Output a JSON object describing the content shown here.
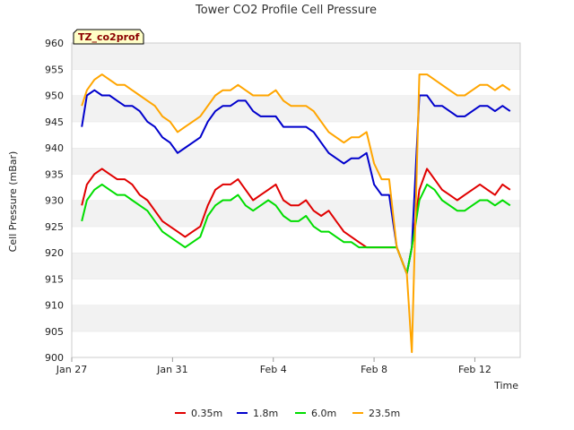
{
  "chart_data": {
    "type": "line",
    "title": "Tower CO2 Profile Cell Pressure",
    "badge": "TZ_co2prof",
    "xlabel": "Time",
    "ylabel": "Cell Pressure (mBar)",
    "xlim": [
      0,
      17.8
    ],
    "ylim": [
      900,
      960
    ],
    "x_ticks": [
      {
        "x": 0,
        "label": "Jan 27"
      },
      {
        "x": 4,
        "label": "Jan 31"
      },
      {
        "x": 8,
        "label": "Feb 4"
      },
      {
        "x": 12,
        "label": "Feb 8"
      },
      {
        "x": 16,
        "label": "Feb 12"
      }
    ],
    "y_ticks": [
      900,
      905,
      910,
      915,
      920,
      925,
      930,
      935,
      940,
      945,
      950,
      955,
      960
    ],
    "grid": "horizontal-bands",
    "legend_position": "bottom",
    "series": [
      {
        "name": "0.35m",
        "color": "#e00000",
        "x": [
          0.4,
          0.6,
          0.9,
          1.2,
          1.5,
          1.8,
          2.1,
          2.4,
          2.7,
          3.0,
          3.3,
          3.6,
          3.9,
          4.2,
          4.5,
          4.8,
          5.1,
          5.4,
          5.7,
          6.0,
          6.3,
          6.6,
          6.9,
          7.2,
          7.5,
          7.8,
          8.1,
          8.4,
          8.7,
          9.0,
          9.3,
          9.6,
          9.9,
          10.2,
          10.5,
          10.8,
          11.1,
          11.4,
          11.7,
          12.0,
          12.3,
          12.6,
          12.9,
          13.3,
          13.5,
          13.8,
          14.1,
          14.4,
          14.7,
          15.0,
          15.3,
          15.6,
          15.9,
          16.2,
          16.5,
          16.8,
          17.1,
          17.4
        ],
        "y": [
          929,
          933,
          935,
          936,
          935,
          934,
          934,
          933,
          931,
          930,
          928,
          926,
          925,
          924,
          923,
          924,
          925,
          929,
          932,
          933,
          933,
          934,
          932,
          930,
          931,
          932,
          933,
          930,
          929,
          929,
          930,
          928,
          927,
          928,
          926,
          924,
          923,
          922,
          921,
          921,
          921,
          921,
          921,
          916,
          921,
          932,
          936,
          934,
          932,
          931,
          930,
          931,
          932,
          933,
          932,
          931,
          933,
          932
        ]
      },
      {
        "name": "1.8m",
        "color": "#0000cc",
        "x": [
          0.4,
          0.6,
          0.9,
          1.2,
          1.5,
          1.8,
          2.1,
          2.4,
          2.7,
          3.0,
          3.3,
          3.6,
          3.9,
          4.2,
          4.5,
          4.8,
          5.1,
          5.4,
          5.7,
          6.0,
          6.3,
          6.6,
          6.9,
          7.2,
          7.5,
          7.8,
          8.1,
          8.4,
          8.7,
          9.0,
          9.3,
          9.6,
          9.9,
          10.2,
          10.5,
          10.8,
          11.1,
          11.4,
          11.7,
          12.0,
          12.3,
          12.6,
          12.9,
          13.3,
          13.5,
          13.8,
          14.1,
          14.4,
          14.7,
          15.0,
          15.3,
          15.6,
          15.9,
          16.2,
          16.5,
          16.8,
          17.1,
          17.4
        ],
        "y": [
          944,
          950,
          951,
          950,
          950,
          949,
          948,
          948,
          947,
          945,
          944,
          942,
          941,
          939,
          940,
          941,
          942,
          945,
          947,
          948,
          948,
          949,
          949,
          947,
          946,
          946,
          946,
          944,
          944,
          944,
          944,
          943,
          941,
          939,
          938,
          937,
          938,
          938,
          939,
          933,
          931,
          931,
          921,
          916,
          921,
          950,
          950,
          948,
          948,
          947,
          946,
          946,
          947,
          948,
          948,
          947,
          948,
          947
        ]
      },
      {
        "name": "6.0m",
        "color": "#00dd00",
        "x": [
          0.4,
          0.6,
          0.9,
          1.2,
          1.5,
          1.8,
          2.1,
          2.4,
          2.7,
          3.0,
          3.3,
          3.6,
          3.9,
          4.2,
          4.5,
          4.8,
          5.1,
          5.4,
          5.7,
          6.0,
          6.3,
          6.6,
          6.9,
          7.2,
          7.5,
          7.8,
          8.1,
          8.4,
          8.7,
          9.0,
          9.3,
          9.6,
          9.9,
          10.2,
          10.5,
          10.8,
          11.1,
          11.4,
          11.7,
          12.0,
          12.3,
          12.6,
          12.9,
          13.3,
          13.5,
          13.8,
          14.1,
          14.4,
          14.7,
          15.0,
          15.3,
          15.6,
          15.9,
          16.2,
          16.5,
          16.8,
          17.1,
          17.4
        ],
        "y": [
          926,
          930,
          932,
          933,
          932,
          931,
          931,
          930,
          929,
          928,
          926,
          924,
          923,
          922,
          921,
          922,
          923,
          927,
          929,
          930,
          930,
          931,
          929,
          928,
          929,
          930,
          929,
          927,
          926,
          926,
          927,
          925,
          924,
          924,
          923,
          922,
          922,
          921,
          921,
          921,
          921,
          921,
          921,
          916,
          921,
          930,
          933,
          932,
          930,
          929,
          928,
          928,
          929,
          930,
          930,
          929,
          930,
          929
        ]
      },
      {
        "name": "23.5m",
        "color": "#ffa500",
        "x": [
          0.4,
          0.6,
          0.9,
          1.2,
          1.5,
          1.8,
          2.1,
          2.4,
          2.7,
          3.0,
          3.3,
          3.6,
          3.9,
          4.2,
          4.5,
          4.8,
          5.1,
          5.4,
          5.7,
          6.0,
          6.3,
          6.6,
          6.9,
          7.2,
          7.5,
          7.8,
          8.1,
          8.4,
          8.7,
          9.0,
          9.3,
          9.6,
          9.9,
          10.2,
          10.5,
          10.8,
          11.1,
          11.4,
          11.7,
          12.0,
          12.3,
          12.6,
          12.9,
          13.3,
          13.5,
          13.8,
          14.1,
          14.4,
          14.7,
          15.0,
          15.3,
          15.6,
          15.9,
          16.2,
          16.5,
          16.8,
          17.1,
          17.4
        ],
        "y": [
          948,
          951,
          953,
          954,
          953,
          952,
          952,
          951,
          950,
          949,
          948,
          946,
          945,
          943,
          944,
          945,
          946,
          948,
          950,
          951,
          951,
          952,
          951,
          950,
          950,
          950,
          951,
          949,
          948,
          948,
          948,
          947,
          945,
          943,
          942,
          941,
          942,
          942,
          943,
          937,
          934,
          934,
          921,
          916,
          901,
          954,
          954,
          953,
          952,
          951,
          950,
          950,
          951,
          952,
          952,
          951,
          952,
          951
        ]
      }
    ]
  }
}
